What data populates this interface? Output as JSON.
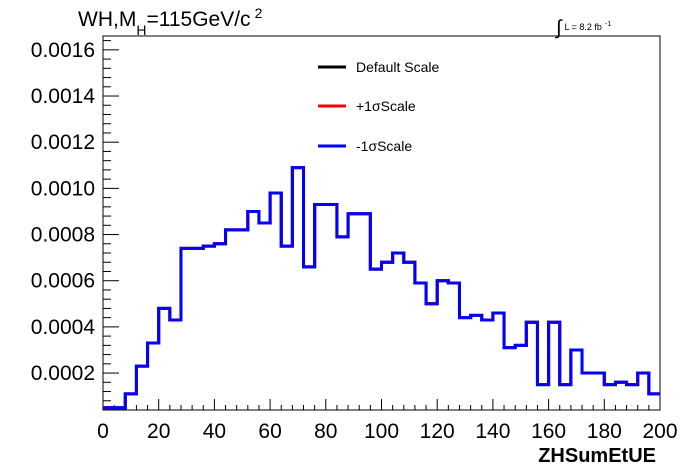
{
  "chart_data": {
    "type": "line",
    "title": {
      "part1": "WH,M",
      "sub": "H",
      "part2": "=115GeV/c",
      "sup": "2"
    },
    "lumi": {
      "integral": "∫",
      "text": "L = 8.2 fb",
      "sup": "-1"
    },
    "xlabel": "ZHSumEtUE",
    "ylabel": "",
    "xlim": [
      0,
      200
    ],
    "ylim": [
      4e-05,
      0.00166
    ],
    "x_ticks": [
      "0",
      "20",
      "40",
      "60",
      "80",
      "100",
      "120",
      "140",
      "160",
      "180",
      "200"
    ],
    "y_ticks": [
      "0.0002",
      "0.0004",
      "0.0006",
      "0.0008",
      "0.0010",
      "0.0012",
      "0.0014",
      "0.0016"
    ],
    "bin_edges": [
      0,
      4,
      8,
      12,
      16,
      20,
      24,
      28,
      32,
      36,
      40,
      44,
      48,
      52,
      56,
      60,
      64,
      68,
      72,
      76,
      80,
      84,
      88,
      92,
      96,
      100,
      104,
      108,
      112,
      116,
      120,
      124,
      128,
      132,
      136,
      140,
      144,
      148,
      152,
      156,
      160,
      164,
      168,
      172,
      176,
      180,
      184,
      188,
      192,
      196,
      200
    ],
    "series": [
      {
        "name": "Default Scale",
        "color": "#000000",
        "values": [
          5e-05,
          5e-05,
          0.00011,
          0.00023,
          0.00033,
          0.00048,
          0.00043,
          0.00074,
          0.00074,
          0.00075,
          0.00076,
          0.00082,
          0.00082,
          0.0009,
          0.00085,
          0.00098,
          0.00075,
          0.00109,
          0.00066,
          0.00093,
          0.00093,
          0.00079,
          0.00089,
          0.00089,
          0.00065,
          0.00068,
          0.00072,
          0.00068,
          0.00059,
          0.0005,
          0.0006,
          0.00059,
          0.00044,
          0.00045,
          0.00043,
          0.00046,
          0.00031,
          0.00032,
          0.00042,
          0.00015,
          0.00042,
          0.00015,
          0.0003,
          0.0002,
          0.0002,
          0.00015,
          0.00016,
          0.00015,
          0.0002,
          0.00011
        ]
      },
      {
        "name": "+1σScale",
        "color": "#ff0000",
        "values": [
          5e-05,
          5e-05,
          0.00011,
          0.00023,
          0.00033,
          0.00048,
          0.00043,
          0.00074,
          0.00074,
          0.00075,
          0.00076,
          0.00082,
          0.00082,
          0.0009,
          0.00085,
          0.00098,
          0.00075,
          0.00109,
          0.00066,
          0.00093,
          0.00093,
          0.00079,
          0.00089,
          0.00089,
          0.00065,
          0.00068,
          0.00072,
          0.00068,
          0.00059,
          0.0005,
          0.0006,
          0.00059,
          0.00044,
          0.00045,
          0.00043,
          0.00046,
          0.00031,
          0.00032,
          0.00042,
          0.00015,
          0.00042,
          0.00015,
          0.0003,
          0.0002,
          0.0002,
          0.00015,
          0.00016,
          0.00015,
          0.0002,
          0.00011
        ]
      },
      {
        "name": "-1σScale",
        "color": "#0000ff",
        "values": [
          5e-05,
          5e-05,
          0.00011,
          0.00023,
          0.00033,
          0.00048,
          0.00043,
          0.00074,
          0.00074,
          0.00075,
          0.00076,
          0.00082,
          0.00082,
          0.0009,
          0.00085,
          0.00098,
          0.00075,
          0.00109,
          0.00066,
          0.00093,
          0.00093,
          0.00079,
          0.00089,
          0.00089,
          0.00065,
          0.00068,
          0.00072,
          0.00068,
          0.00059,
          0.0005,
          0.0006,
          0.00059,
          0.00044,
          0.00045,
          0.00043,
          0.00046,
          0.00031,
          0.00032,
          0.00042,
          0.00015,
          0.00042,
          0.00015,
          0.0003,
          0.0002,
          0.0002,
          0.00015,
          0.00016,
          0.00015,
          0.0002,
          0.00011
        ]
      }
    ],
    "legend": {
      "placement": "top-center",
      "entries": [
        "Default Scale",
        "+1σScale",
        "-1σScale"
      ]
    },
    "grid": false
  }
}
